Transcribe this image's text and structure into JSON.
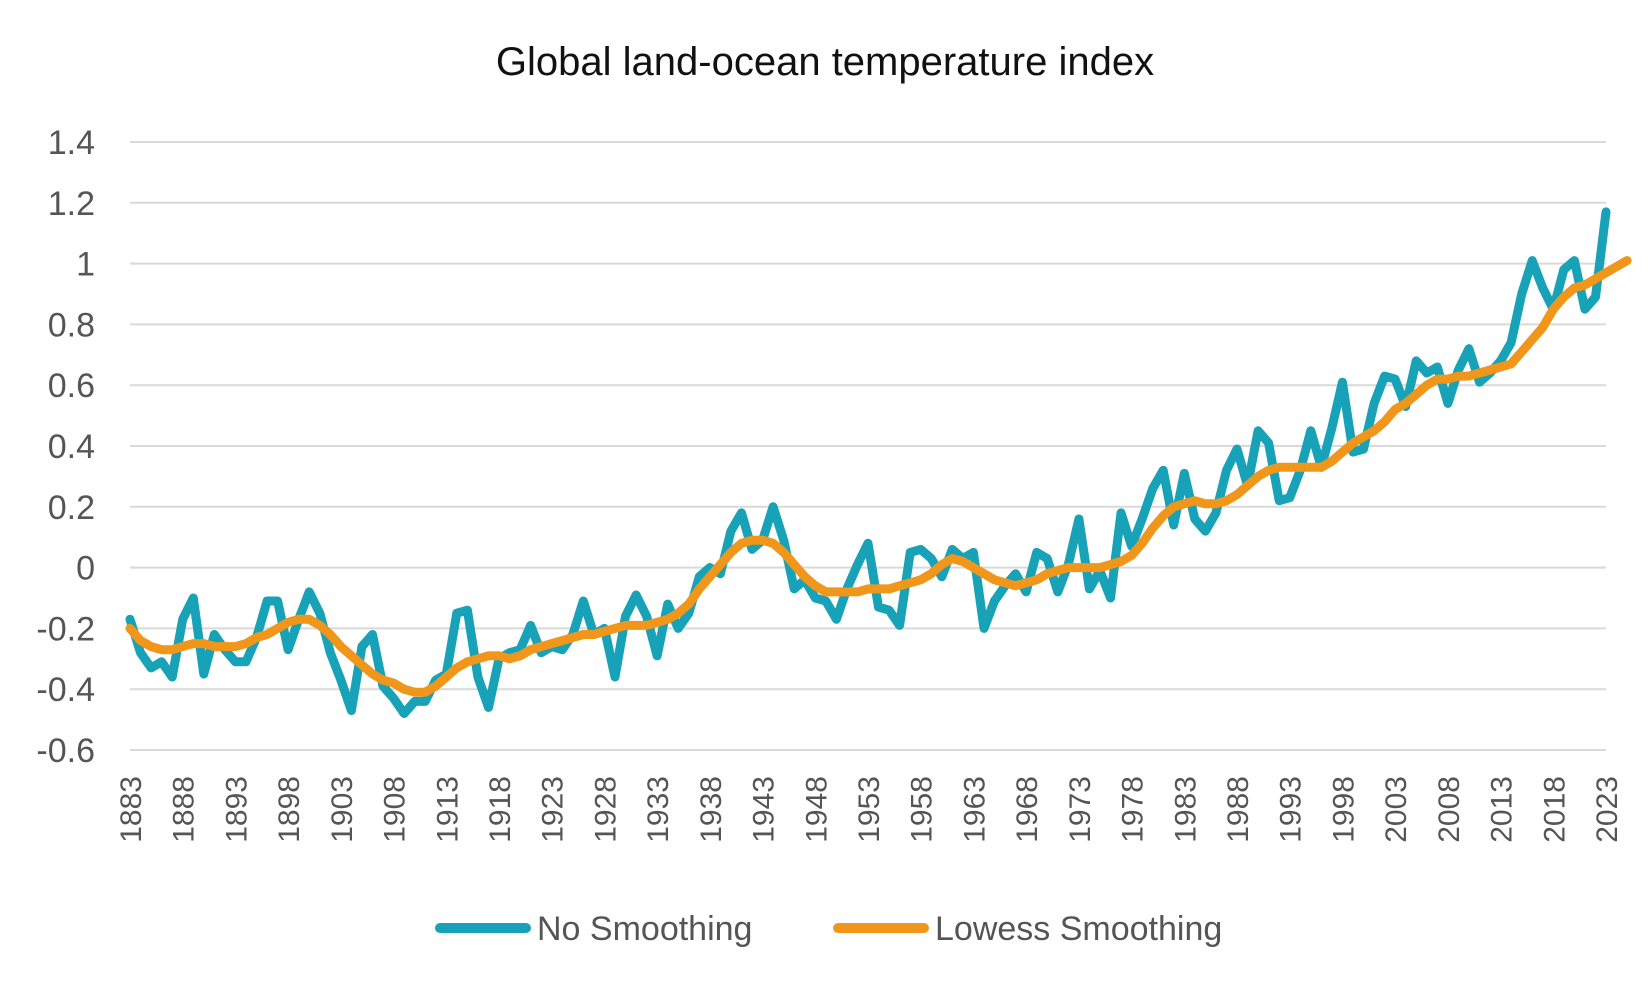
{
  "chart_data": {
    "type": "line",
    "title": "Global land-ocean temperature index",
    "xlabel": "",
    "ylabel": "",
    "ylim": [
      -0.6,
      1.4
    ],
    "yticks": [
      "-0.6",
      "-0.4",
      "-0.2",
      "0",
      "0.2",
      "0.4",
      "0.6",
      "0.8",
      "1",
      "1.2",
      "1.4"
    ],
    "xticks": [
      1883,
      1888,
      1893,
      1898,
      1903,
      1908,
      1913,
      1918,
      1923,
      1928,
      1933,
      1938,
      1943,
      1948,
      1953,
      1958,
      1963,
      1968,
      1973,
      1978,
      1983,
      1988,
      1993,
      1998,
      2003,
      2008,
      2013,
      2018,
      2023
    ],
    "grid": true,
    "legend_position": "bottom",
    "x_start": 1883,
    "x_end": 2023,
    "series": [
      {
        "name": "No Smoothing",
        "color": "#17a2b8",
        "values": [
          -0.17,
          -0.28,
          -0.33,
          -0.31,
          -0.36,
          -0.17,
          -0.1,
          -0.35,
          -0.22,
          -0.27,
          -0.31,
          -0.31,
          -0.23,
          -0.11,
          -0.11,
          -0.27,
          -0.17,
          -0.08,
          -0.15,
          -0.28,
          -0.37,
          -0.47,
          -0.26,
          -0.22,
          -0.39,
          -0.43,
          -0.48,
          -0.44,
          -0.44,
          -0.37,
          -0.35,
          -0.15,
          -0.14,
          -0.36,
          -0.46,
          -0.3,
          -0.28,
          -0.27,
          -0.19,
          -0.28,
          -0.26,
          -0.27,
          -0.22,
          -0.11,
          -0.22,
          -0.2,
          -0.36,
          -0.16,
          -0.09,
          -0.16,
          -0.29,
          -0.12,
          -0.2,
          -0.15,
          -0.03,
          0.0,
          -0.02,
          0.12,
          0.18,
          0.06,
          0.09,
          0.2,
          0.09,
          -0.07,
          -0.04,
          -0.1,
          -0.11,
          -0.17,
          -0.07,
          0.01,
          0.08,
          -0.13,
          -0.14,
          -0.19,
          0.05,
          0.06,
          0.03,
          -0.03,
          0.06,
          0.03,
          0.05,
          -0.2,
          -0.11,
          -0.06,
          -0.02,
          -0.08,
          0.05,
          0.03,
          -0.08,
          0.01,
          0.16,
          -0.07,
          -0.01,
          -0.1,
          0.18,
          0.07,
          0.16,
          0.26,
          0.32,
          0.14,
          0.31,
          0.16,
          0.12,
          0.18,
          0.32,
          0.39,
          0.27,
          0.45,
          0.41,
          0.22,
          0.23,
          0.32,
          0.45,
          0.33,
          0.46,
          0.61,
          0.38,
          0.39,
          0.54,
          0.63,
          0.62,
          0.53,
          0.68,
          0.64,
          0.66,
          0.54,
          0.65,
          0.72,
          0.61,
          0.64,
          0.68,
          0.74,
          0.9,
          1.01,
          0.92,
          0.85,
          0.98,
          1.01,
          0.85,
          0.89,
          1.17
        ]
      },
      {
        "name": "Lowess Smoothing",
        "color": "#f0961b",
        "values": [
          -0.2,
          -0.24,
          -0.26,
          -0.27,
          -0.27,
          -0.26,
          -0.25,
          -0.25,
          -0.26,
          -0.26,
          -0.26,
          -0.25,
          -0.23,
          -0.22,
          -0.2,
          -0.18,
          -0.17,
          -0.17,
          -0.19,
          -0.22,
          -0.26,
          -0.29,
          -0.32,
          -0.35,
          -0.37,
          -0.38,
          -0.4,
          -0.41,
          -0.41,
          -0.39,
          -0.36,
          -0.33,
          -0.31,
          -0.3,
          -0.29,
          -0.29,
          -0.3,
          -0.29,
          -0.27,
          -0.26,
          -0.25,
          -0.24,
          -0.23,
          -0.22,
          -0.22,
          -0.21,
          -0.2,
          -0.19,
          -0.19,
          -0.19,
          -0.18,
          -0.17,
          -0.15,
          -0.12,
          -0.07,
          -0.03,
          0.01,
          0.05,
          0.08,
          0.09,
          0.09,
          0.08,
          0.05,
          0.01,
          -0.03,
          -0.06,
          -0.08,
          -0.08,
          -0.08,
          -0.08,
          -0.07,
          -0.07,
          -0.07,
          -0.06,
          -0.05,
          -0.04,
          -0.02,
          0.01,
          0.03,
          0.02,
          0.0,
          -0.02,
          -0.04,
          -0.05,
          -0.06,
          -0.05,
          -0.04,
          -0.02,
          -0.01,
          0.0,
          0.0,
          0.0,
          0.0,
          0.01,
          0.02,
          0.04,
          0.08,
          0.13,
          0.17,
          0.2,
          0.21,
          0.22,
          0.21,
          0.21,
          0.22,
          0.24,
          0.27,
          0.3,
          0.32,
          0.33,
          0.33,
          0.33,
          0.33,
          0.33,
          0.35,
          0.38,
          0.41,
          0.43,
          0.45,
          0.48,
          0.52,
          0.54,
          0.57,
          0.6,
          0.62,
          0.62,
          0.63,
          0.63,
          0.64,
          0.65,
          0.66,
          0.67,
          0.71,
          0.75,
          0.79,
          0.85,
          0.89,
          0.92,
          0.93,
          0.95,
          0.97,
          0.99,
          1.01
        ]
      }
    ]
  }
}
